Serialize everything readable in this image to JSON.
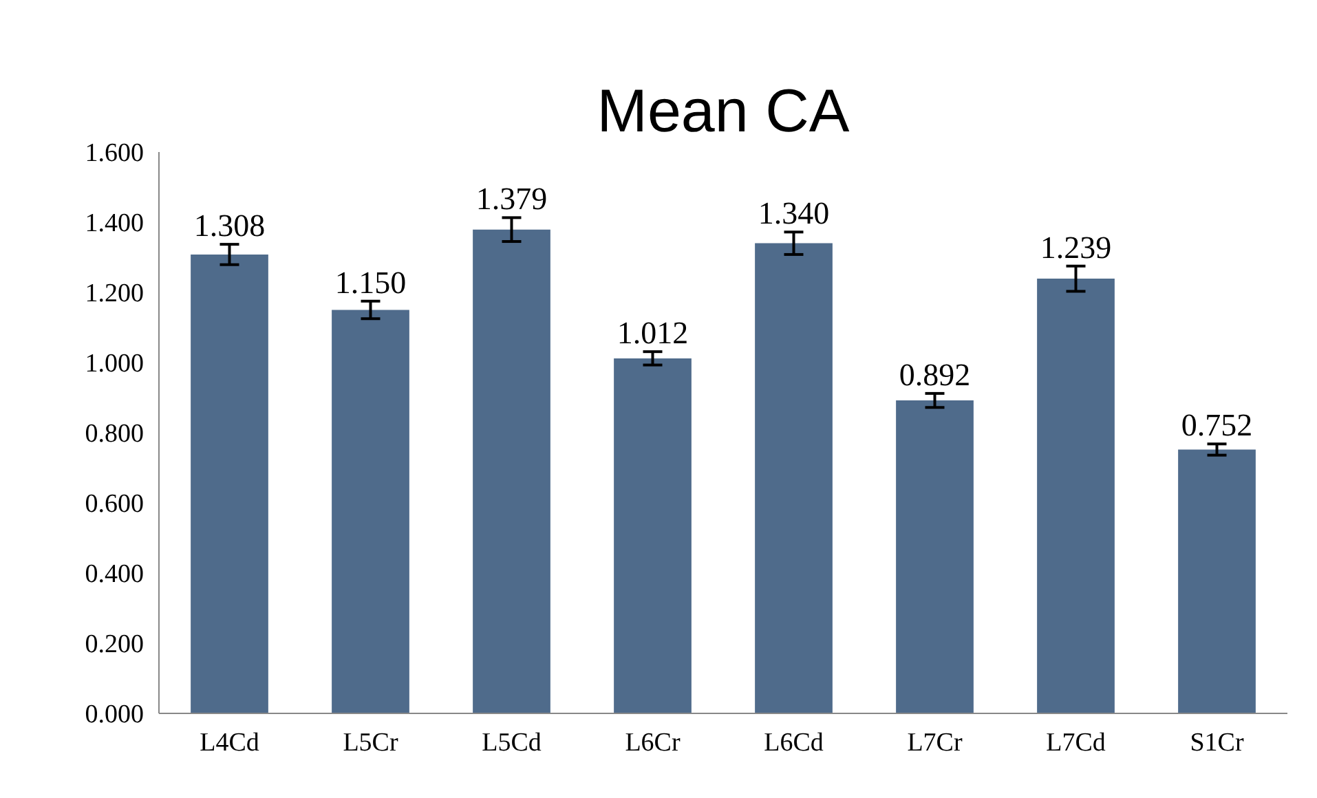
{
  "chart_data": {
    "type": "bar",
    "title": "Mean CA",
    "categories": [
      "L4Cd",
      "L5Cr",
      "L5Cd",
      "L6Cr",
      "L6Cd",
      "L7Cr",
      "L7Cd",
      "S1Cr"
    ],
    "values": [
      1.308,
      1.15,
      1.379,
      1.012,
      1.34,
      0.892,
      1.239,
      0.752
    ],
    "value_labels": [
      "1.308",
      "1.150",
      "1.379",
      "1.012",
      "1.340",
      "0.892",
      "1.239",
      "0.752"
    ],
    "errors": [
      0.029,
      0.025,
      0.034,
      0.019,
      0.032,
      0.02,
      0.036,
      0.016
    ],
    "color": "#4f6b8b",
    "ylim": [
      0,
      1.6
    ],
    "yticks": [
      {
        "value": 0,
        "label": "0.000"
      },
      {
        "value": 0.2,
        "label": "0.200"
      },
      {
        "value": 0.4,
        "label": "0.400"
      },
      {
        "value": 0.6,
        "label": "0.600"
      },
      {
        "value": 0.8,
        "label": "0.800"
      },
      {
        "value": 1.0,
        "label": "1.000"
      },
      {
        "value": 1.2,
        "label": "1.200"
      },
      {
        "value": 1.4,
        "label": "1.400"
      },
      {
        "value": 1.6,
        "label": "1.600"
      }
    ],
    "grid": false
  }
}
